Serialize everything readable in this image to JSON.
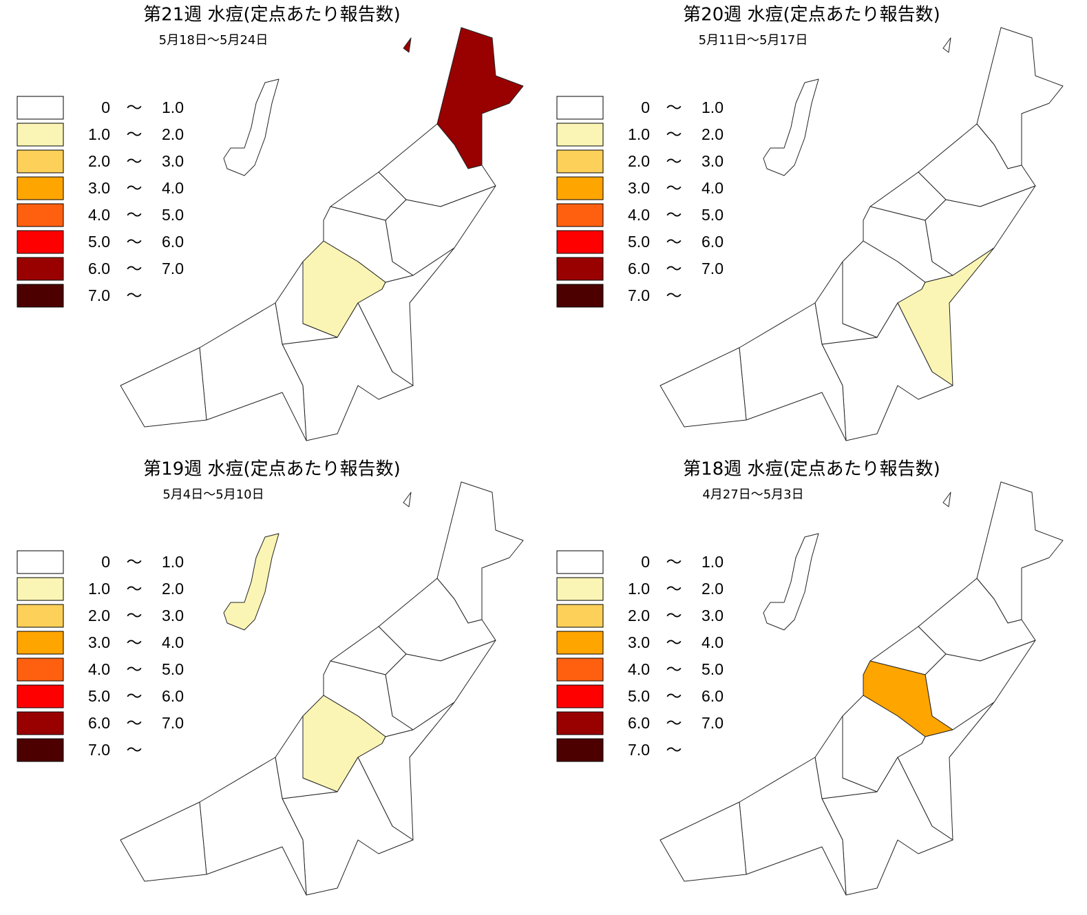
{
  "panels": [
    {
      "title": "第21週 水痘(定点あたり報告数)",
      "subtitle": "5月18日～5月24日",
      "region_colors": [
        "#990000",
        "#ffffff",
        "#ffffff",
        "#ffffff",
        "#ffffff",
        "#faf5b4",
        "#ffffff",
        "#ffffff",
        "#ffffff",
        "#ffffff",
        "#ffffff",
        "#ffffff",
        "#990000"
      ]
    },
    {
      "title": "第20週 水痘(定点あたり報告数)",
      "subtitle": "5月11日～5月17日",
      "region_colors": [
        "#ffffff",
        "#ffffff",
        "#ffffff",
        "#ffffff",
        "#ffffff",
        "#ffffff",
        "#faf5b4",
        "#ffffff",
        "#ffffff",
        "#ffffff",
        "#ffffff",
        "#ffffff",
        "#ffffff"
      ]
    },
    {
      "title": "第19週 水痘(定点あたり報告数)",
      "subtitle": "5月4日～5月10日",
      "region_colors": [
        "#ffffff",
        "#ffffff",
        "#ffffff",
        "#ffffff",
        "#ffffff",
        "#faf5b4",
        "#ffffff",
        "#ffffff",
        "#ffffff",
        "#ffffff",
        "#ffffff",
        "#faf5b4",
        "#ffffff"
      ]
    },
    {
      "title": "第18週 水痘(定点あたり報告数)",
      "subtitle": "4月27日～5月3日",
      "region_colors": [
        "#ffffff",
        "#ffffff",
        "#ffffff",
        "#ffffff",
        "#ffa500",
        "#ffffff",
        "#ffffff",
        "#ffffff",
        "#ffffff",
        "#ffffff",
        "#ffffff",
        "#ffffff",
        "#ffffff"
      ]
    }
  ],
  "legend": [
    {
      "from": "0",
      "sep": "～",
      "to": "1.0",
      "color": "#ffffff"
    },
    {
      "from": "1.0",
      "sep": "～",
      "to": "2.0",
      "color": "#faf5b4"
    },
    {
      "from": "2.0",
      "sep": "～",
      "to": "3.0",
      "color": "#fdd05a"
    },
    {
      "from": "3.0",
      "sep": "～",
      "to": "4.0",
      "color": "#ffa500"
    },
    {
      "from": "4.0",
      "sep": "～",
      "to": "5.0",
      "color": "#ff6010"
    },
    {
      "from": "5.0",
      "sep": "～",
      "to": "6.0",
      "color": "#ff0000"
    },
    {
      "from": "6.0",
      "sep": "～",
      "to": "7.0",
      "color": "#990000"
    },
    {
      "from": "7.0",
      "sep": "～",
      "color": "#4d0000"
    }
  ]
}
